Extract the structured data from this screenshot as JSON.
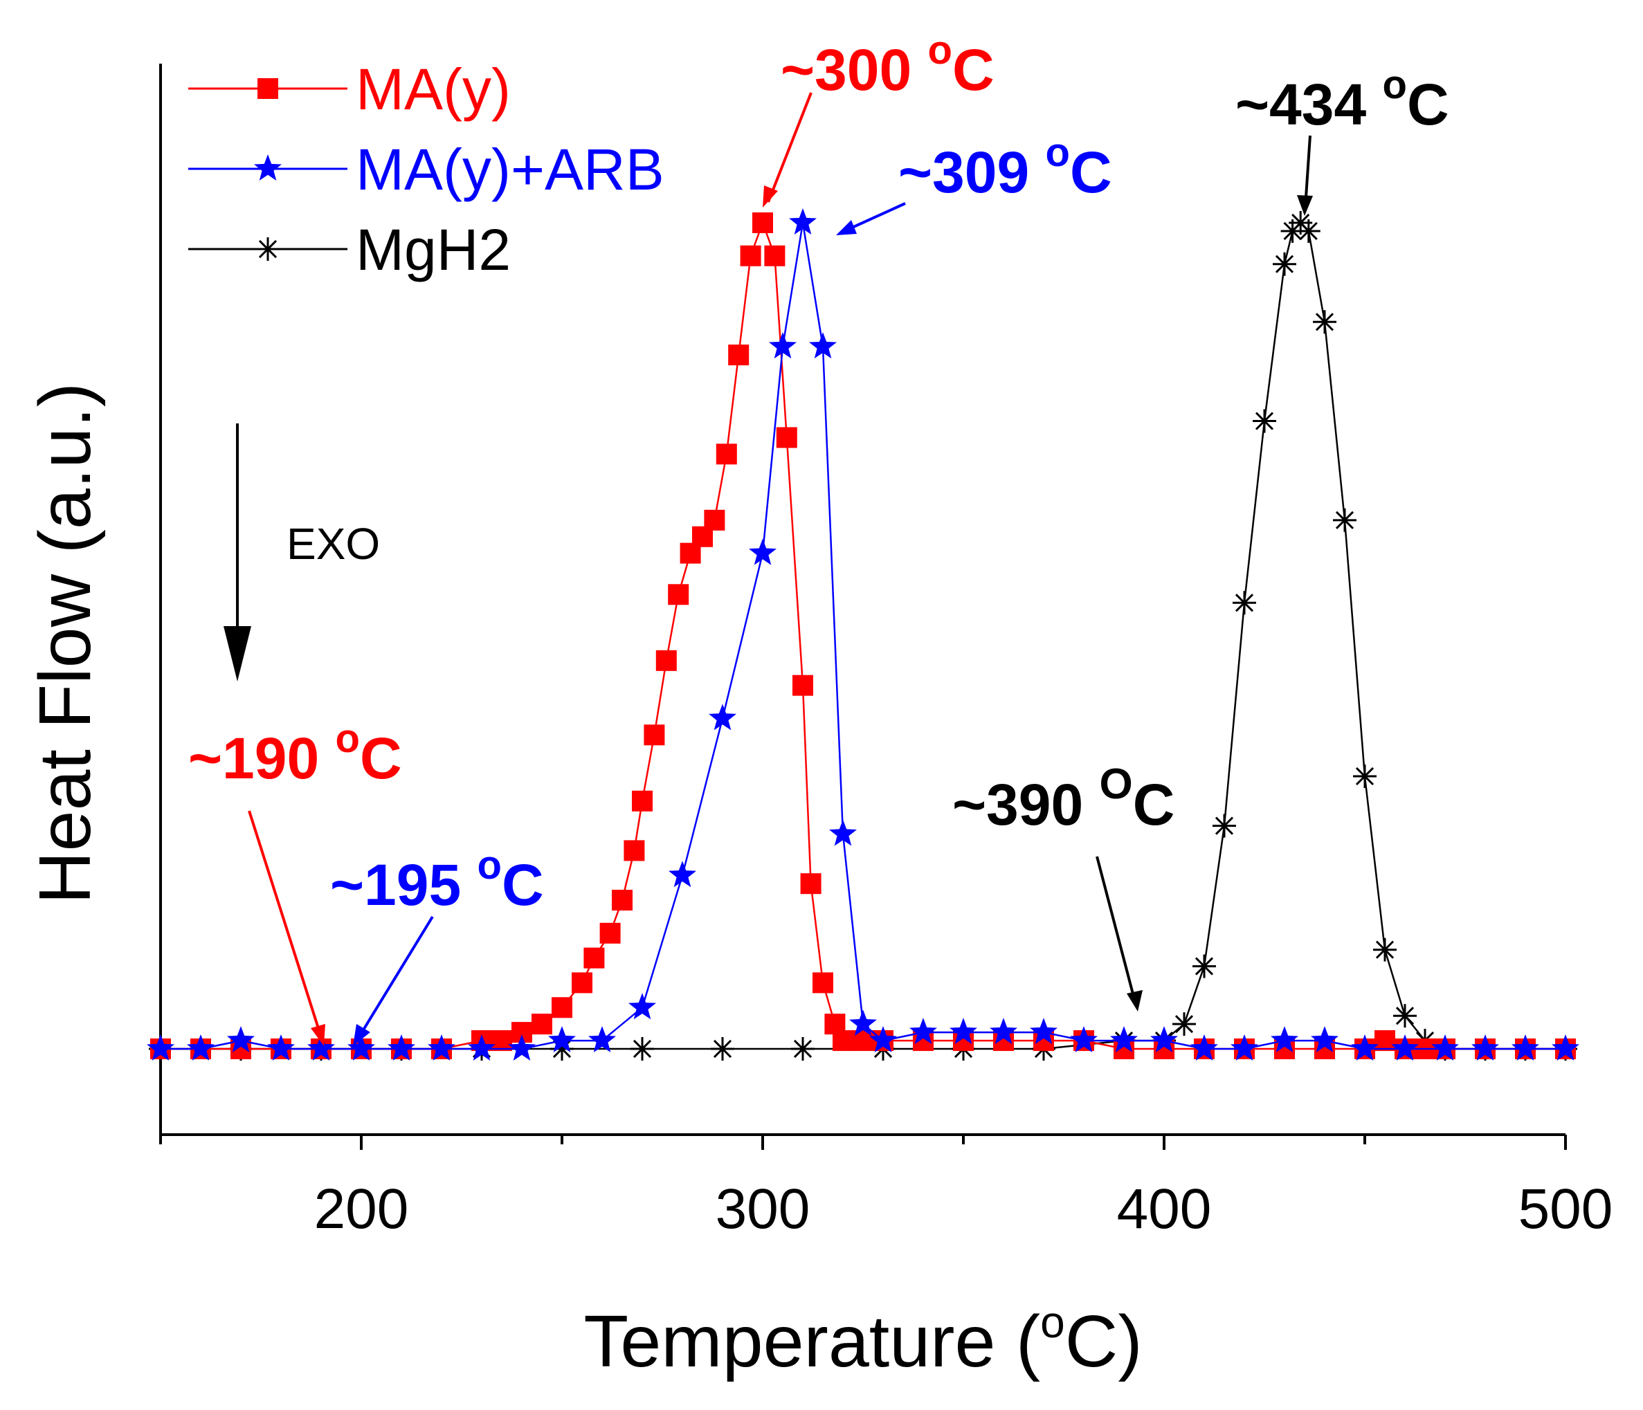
{
  "chart_data": {
    "type": "line",
    "title": "",
    "xlabel_main": "Temperature (",
    "xlabel_unit_sup": "o",
    "xlabel_unit_end": "C)",
    "ylabel": "Heat Flow (a.u.)",
    "xlim": [
      150,
      500
    ],
    "ylim": [
      0,
      1.1
    ],
    "xticks": [
      200,
      300,
      400,
      500
    ],
    "yticks_shown": false,
    "legend_position": "top-left",
    "exo_label": "EXO",
    "series": [
      {
        "name": "MA(y)",
        "color": "#ff0000",
        "marker": "square",
        "x": [
          150,
          160,
          170,
          180,
          190,
          200,
          210,
          220,
          230,
          235,
          240,
          245,
          250,
          255,
          258,
          262,
          265,
          268,
          270,
          273,
          276,
          279,
          282,
          285,
          288,
          291,
          294,
          297,
          300,
          303,
          306,
          310,
          312,
          315,
          318,
          320,
          325,
          330,
          340,
          350,
          360,
          370,
          380,
          390,
          400,
          410,
          420,
          430,
          440,
          450,
          455,
          460,
          465,
          470,
          480,
          490,
          500
        ],
        "y": [
          0.0,
          0.0,
          0.0,
          0.0,
          0.0,
          0.0,
          0.0,
          0.0,
          0.01,
          0.01,
          0.02,
          0.03,
          0.05,
          0.08,
          0.11,
          0.14,
          0.18,
          0.24,
          0.3,
          0.38,
          0.47,
          0.55,
          0.6,
          0.62,
          0.64,
          0.72,
          0.84,
          0.96,
          1.0,
          0.96,
          0.74,
          0.44,
          0.2,
          0.08,
          0.03,
          0.01,
          0.01,
          0.01,
          0.01,
          0.01,
          0.01,
          0.01,
          0.01,
          0.0,
          0.0,
          0.0,
          0.0,
          0.0,
          0.0,
          0.0,
          0.01,
          0.0,
          0.0,
          0.0,
          0.0,
          0.0,
          0.0
        ]
      },
      {
        "name": "MA(y)+ARB",
        "color": "#0000ff",
        "marker": "star",
        "x": [
          150,
          160,
          170,
          180,
          190,
          200,
          210,
          220,
          230,
          240,
          250,
          260,
          270,
          280,
          290,
          300,
          305,
          310,
          315,
          320,
          325,
          330,
          340,
          350,
          360,
          370,
          380,
          390,
          400,
          410,
          420,
          430,
          440,
          450,
          460,
          470,
          480,
          490,
          500
        ],
        "y": [
          0.0,
          0.0,
          0.01,
          0.0,
          0.0,
          0.0,
          0.0,
          0.0,
          0.0,
          0.0,
          0.01,
          0.01,
          0.05,
          0.21,
          0.4,
          0.6,
          0.85,
          1.0,
          0.85,
          0.26,
          0.03,
          0.01,
          0.02,
          0.02,
          0.02,
          0.02,
          0.01,
          0.01,
          0.01,
          0.0,
          0.0,
          0.01,
          0.01,
          0.0,
          0.0,
          0.0,
          0.0,
          0.0,
          0.0
        ]
      },
      {
        "name": "MgH2",
        "color": "#000000",
        "marker": "asterisk",
        "x": [
          150,
          170,
          190,
          210,
          230,
          250,
          270,
          290,
          310,
          330,
          350,
          370,
          390,
          400,
          405,
          410,
          415,
          420,
          425,
          430,
          432,
          434,
          436,
          440,
          445,
          450,
          455,
          460,
          465,
          470,
          480,
          490,
          500
        ],
        "y": [
          0.0,
          0.0,
          0.0,
          0.0,
          0.0,
          0.0,
          0.0,
          0.0,
          0.0,
          0.0,
          0.0,
          0.0,
          0.01,
          0.01,
          0.03,
          0.1,
          0.27,
          0.54,
          0.76,
          0.95,
          0.99,
          1.0,
          0.99,
          0.88,
          0.64,
          0.33,
          0.12,
          0.04,
          0.01,
          0.0,
          0.0,
          0.0,
          0.0
        ]
      }
    ],
    "annotations": [
      {
        "text": "~300 ",
        "unit": "C",
        "sup": "o",
        "color": "#ff0000",
        "x": 301,
        "y": 1.12
      },
      {
        "text": "~309 ",
        "unit": "C",
        "sup": "o",
        "color": "#0000ff",
        "x": 340,
        "y": 1.03
      },
      {
        "text": "~434 ",
        "unit": "C",
        "sup": "o",
        "color": "#000000",
        "x": 430,
        "y": 1.15
      },
      {
        "text": "~190 ",
        "unit": "C",
        "sup": "o",
        "color": "#ff0000",
        "x": 185,
        "y": 0.4
      },
      {
        "text": "~195 ",
        "unit": "C",
        "sup": "o",
        "color": "#0000ff",
        "x": 202,
        "y": 0.2
      },
      {
        "text": "~390 ",
        "unit": "C",
        "sup": "O",
        "color": "#000000",
        "x": 385,
        "y": 0.29
      }
    ]
  }
}
